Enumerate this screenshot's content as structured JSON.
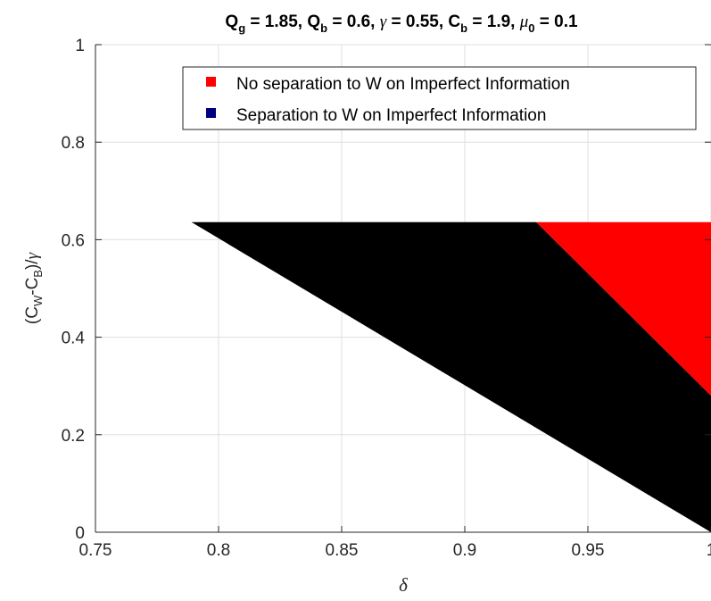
{
  "chart_data": {
    "type": "area",
    "title": "Q_g = 1.85, Q_b = 0.6, γ = 0.55, C_b = 1.9, μ_0 = 0.1",
    "xlabel": "δ",
    "ylabel": "(C_W-C_B)/γ",
    "xlim": [
      0.75,
      1.0
    ],
    "ylim": [
      0,
      1
    ],
    "xticks": [
      "0.75",
      "0.8",
      "0.85",
      "0.9",
      "0.95",
      "1"
    ],
    "yticks": [
      "0",
      "0.2",
      "0.4",
      "0.6",
      "0.8",
      "1"
    ],
    "grid": true,
    "legend_position": "top-right",
    "series": [
      {
        "name": "No separation to W on Imperfect Information",
        "color": "#ff0000",
        "polygon": [
          [
            0.929,
            0.636
          ],
          [
            1.0,
            0.636
          ],
          [
            1.0,
            0.28
          ]
        ]
      },
      {
        "name": "Separation to W on Imperfect Information",
        "color": "#000000",
        "legend_marker_color": "#000080",
        "polygon": [
          [
            0.789,
            0.636
          ],
          [
            0.929,
            0.636
          ],
          [
            1.0,
            0.28
          ],
          [
            1.0,
            0.0
          ]
        ]
      }
    ]
  }
}
